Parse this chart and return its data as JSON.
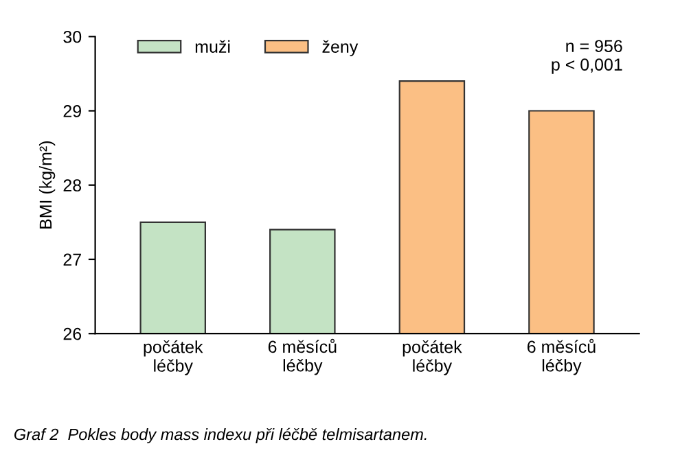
{
  "chart_data": {
    "type": "bar",
    "ylabel": "BMI (kg/m²)",
    "categories": [
      "počátek\nléčby",
      "6 měsíců\nléčby",
      "počátek\nléčby",
      "6 měsíců\nléčby"
    ],
    "series": [
      {
        "name": "muži",
        "color": "#c4e3c4",
        "values": [
          27.5,
          27.4,
          null,
          null
        ]
      },
      {
        "name": "ženy",
        "color": "#fbbf84",
        "values": [
          null,
          null,
          29.4,
          29.0
        ]
      }
    ],
    "ylim": [
      26,
      30
    ],
    "yticks": [
      26,
      27,
      28,
      29,
      30
    ],
    "grid": false,
    "legend": "top left",
    "annotations": [
      "n = 956\np < 0,001",
      "Graf 2  Pokles body mass indexu při léčbě telmisartanem."
    ]
  }
}
